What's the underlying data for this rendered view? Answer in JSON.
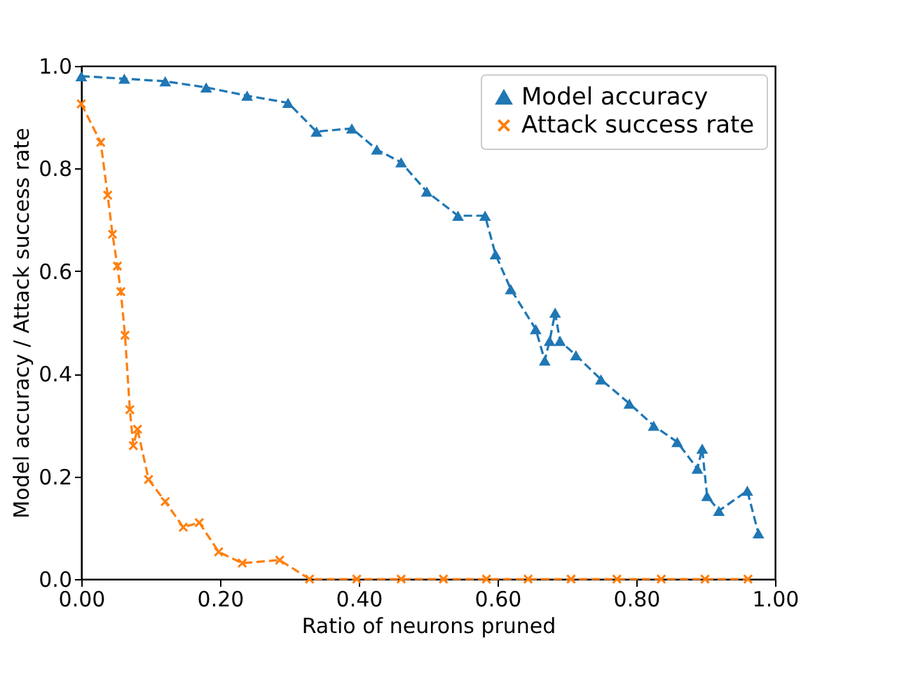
{
  "chart_data": {
    "type": "line",
    "xlabel": "Ratio of neurons pruned",
    "ylabel": "Model accuracy / Attack success rate",
    "xlim": [
      0,
      1
    ],
    "ylim": [
      0,
      1
    ],
    "xticks": [
      {
        "value": 0,
        "label": "0.00"
      },
      {
        "value": 0.2,
        "label": "0.20"
      },
      {
        "value": 0.4,
        "label": "0.40"
      },
      {
        "value": 0.6,
        "label": "0.60"
      },
      {
        "value": 0.8,
        "label": "0.80"
      },
      {
        "value": 1,
        "label": "1.00"
      }
    ],
    "yticks": [
      {
        "value": 0,
        "label": "0.0"
      },
      {
        "value": 0.2,
        "label": "0.2"
      },
      {
        "value": 0.4,
        "label": "0.4"
      },
      {
        "value": 0.6,
        "label": "0.6"
      },
      {
        "value": 0.8,
        "label": "0.8"
      },
      {
        "value": 1,
        "label": "1.0"
      }
    ],
    "grid": false,
    "legend": "top right",
    "line_style": "dashed",
    "series": [
      {
        "name": "Model accuracy",
        "color": "#1f77b4",
        "marker": "triangle",
        "x": [
          0,
          0.062,
          0.121,
          0.18,
          0.239,
          0.298,
          0.339,
          0.39,
          0.426,
          0.461,
          0.498,
          0.543,
          0.582,
          0.597,
          0.619,
          0.655,
          0.668,
          0.675,
          0.683,
          0.69,
          0.713,
          0.749,
          0.79,
          0.825,
          0.859,
          0.888,
          0.895,
          0.902,
          0.919,
          0.96,
          0.976
        ],
        "values": [
          0.98,
          0.975,
          0.97,
          0.958,
          0.942,
          0.928,
          0.872,
          0.878,
          0.837,
          0.812,
          0.755,
          0.708,
          0.708,
          0.633,
          0.565,
          0.487,
          0.426,
          0.464,
          0.519,
          0.464,
          0.436,
          0.389,
          0.342,
          0.299,
          0.267,
          0.215,
          0.254,
          0.162,
          0.133,
          0.172,
          0.089
        ]
      },
      {
        "name": "Attack success rate",
        "color": "#ff7f0e",
        "marker": "cross",
        "x": [
          0,
          0.028,
          0.038,
          0.045,
          0.052,
          0.057,
          0.063,
          0.07,
          0.075,
          0.081,
          0.097,
          0.121,
          0.147,
          0.17,
          0.198,
          0.232,
          0.286,
          0.329,
          0.397,
          0.461,
          0.522,
          0.584,
          0.644,
          0.706,
          0.772,
          0.836,
          0.899,
          0.961
        ],
        "values": [
          0.926,
          0.851,
          0.748,
          0.672,
          0.61,
          0.56,
          0.475,
          0.33,
          0.26,
          0.292,
          0.194,
          0.151,
          0.101,
          0.11,
          0.053,
          0.031,
          0.037,
          0,
          0,
          0,
          0,
          0,
          0,
          0,
          0,
          0,
          0,
          0
        ]
      }
    ]
  }
}
